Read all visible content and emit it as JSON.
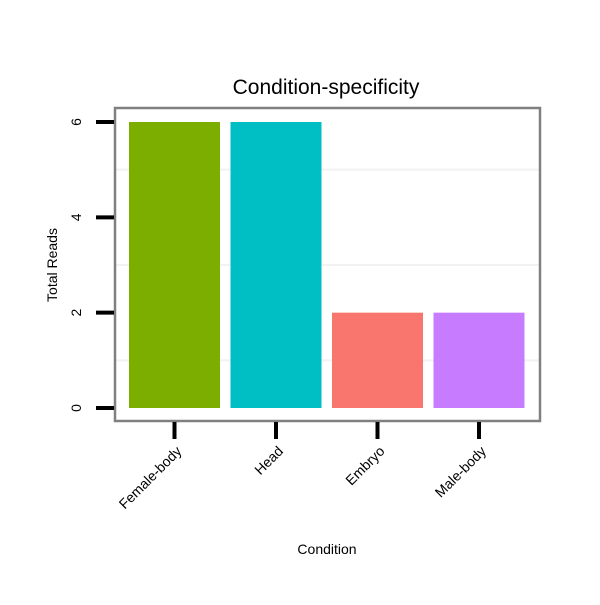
{
  "chart_data": {
    "type": "bar",
    "title": "Condition-specificity",
    "xlabel": "Condition",
    "ylabel": "Total Reads",
    "categories": [
      "Female-body",
      "Head",
      "Embryo",
      "Male-body"
    ],
    "values": [
      6,
      6,
      2,
      2
    ],
    "colors": [
      "#7CAE00",
      "#00BFC4",
      "#F8766D",
      "#C77CFF"
    ],
    "ylim": [
      -0.3,
      6.2
    ],
    "yticks": [
      0,
      2,
      4,
      6
    ],
    "ytick_labels": [
      "0",
      "2",
      "4",
      "6"
    ],
    "minor_grid": [
      1,
      3,
      5
    ],
    "grid": true,
    "legend": "none"
  }
}
